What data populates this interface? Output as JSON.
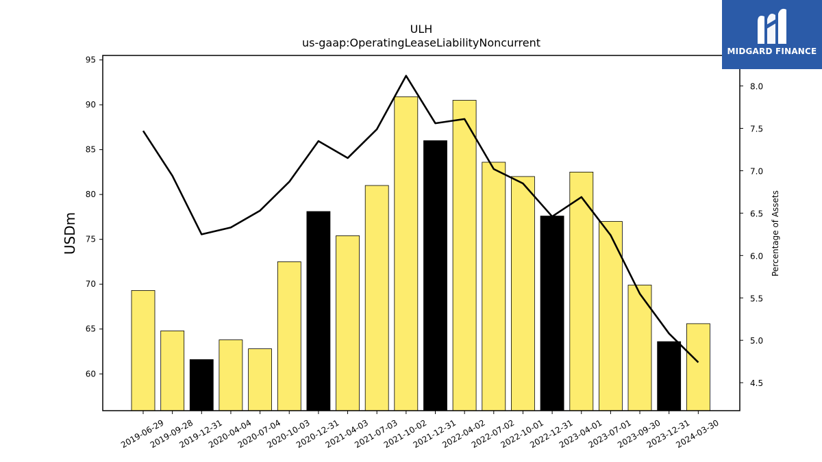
{
  "colors": {
    "bar_default": "#fdec6e",
    "bar_highlight": "#000000",
    "line": "#000000",
    "logo_bg": "#2b5ba8"
  },
  "logo": {
    "text": "MIDGARD FINANCE",
    "icon": "midgard-m-logo-icon"
  },
  "chart_data": {
    "type": "bar",
    "title": "ULH",
    "subtitle": "us-gaap:OperatingLeaseLiabilityNoncurrent",
    "ylabel": "USDm",
    "y2label": "Percentage of Assets",
    "ylim": [
      55.9,
      95.5
    ],
    "y2lim": [
      4.17,
      8.36
    ],
    "yticks": [
      60,
      65,
      70,
      75,
      80,
      85,
      90,
      95
    ],
    "y2ticks": [
      "4.5",
      "5.0",
      "5.5",
      "6.0",
      "6.5",
      "7.0",
      "7.5",
      "8.0"
    ],
    "grid": false,
    "categories": [
      "2019-06-29",
      "2019-09-28",
      "2019-12-31",
      "2020-04-04",
      "2020-07-04",
      "2020-10-03",
      "2020-12-31",
      "2021-04-03",
      "2021-07-03",
      "2021-10-02",
      "2021-12-31",
      "2022-04-02",
      "2022-07-02",
      "2022-10-01",
      "2022-12-31",
      "2023-04-01",
      "2023-07-01",
      "2023-09-30",
      "2023-12-31",
      "2024-03-30"
    ],
    "series": [
      {
        "type": "bar",
        "axis": "left",
        "values": [
          69.3,
          64.8,
          61.6,
          63.8,
          62.8,
          72.5,
          78.1,
          75.4,
          81.0,
          90.9,
          86.0,
          90.5,
          83.6,
          82.0,
          77.6,
          82.5,
          77.0,
          69.9,
          63.6,
          65.6
        ],
        "highlight": [
          false,
          false,
          true,
          false,
          false,
          false,
          true,
          false,
          false,
          false,
          true,
          false,
          false,
          false,
          true,
          false,
          false,
          false,
          true,
          false
        ]
      },
      {
        "type": "line",
        "axis": "right",
        "values": [
          7.47,
          6.94,
          6.25,
          6.33,
          6.53,
          6.87,
          7.35,
          7.15,
          7.49,
          8.12,
          7.56,
          7.61,
          7.02,
          6.85,
          6.46,
          6.69,
          6.24,
          5.55,
          5.08,
          4.74
        ]
      }
    ]
  }
}
